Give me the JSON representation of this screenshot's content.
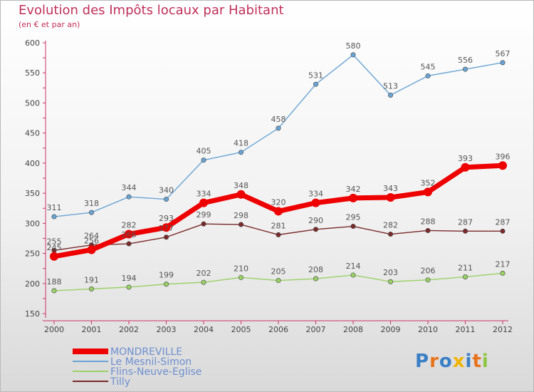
{
  "header": {
    "title": "Evolution des Impôts locaux par Habitant",
    "subtitle": "(en € et par an)"
  },
  "logo": {
    "text": "Proxiti"
  },
  "chart_data": {
    "type": "line",
    "title": "Evolution des Impôts locaux par Habitant",
    "subtitle": "(en € et par an)",
    "xlabel": "",
    "ylabel": "",
    "x": [
      "2000",
      "2001",
      "2002",
      "2003",
      "2004",
      "2005",
      "2006",
      "2007",
      "2008",
      "2009",
      "2010",
      "2011",
      "2012"
    ],
    "ylim": [
      150,
      600
    ],
    "yticks": [
      "150",
      "200",
      "250",
      "300",
      "350",
      "400",
      "450",
      "500",
      "550",
      "600"
    ],
    "grid": false,
    "legend": "bottom-left",
    "series": [
      {
        "name": "MONDREVILLE",
        "color": "#ee0000",
        "values": [
          245,
          256,
          282,
          293,
          334,
          348,
          320,
          334,
          342,
          343,
          352,
          393,
          396
        ]
      },
      {
        "name": "Le Mesnil-Simon",
        "color": "#6aa4d4",
        "values": [
          311,
          318,
          344,
          340,
          405,
          418,
          458,
          531,
          580,
          513,
          545,
          556,
          567
        ]
      },
      {
        "name": "Flins-Neuve-Eglise",
        "color": "#9ad066",
        "values": [
          188,
          191,
          194,
          199,
          202,
          210,
          205,
          208,
          214,
          203,
          206,
          211,
          217
        ]
      },
      {
        "name": "Tilly",
        "color": "#7a2a2a",
        "values": [
          255,
          264,
          266,
          277,
          299,
          298,
          281,
          290,
          295,
          282,
          288,
          287,
          287
        ]
      }
    ]
  }
}
